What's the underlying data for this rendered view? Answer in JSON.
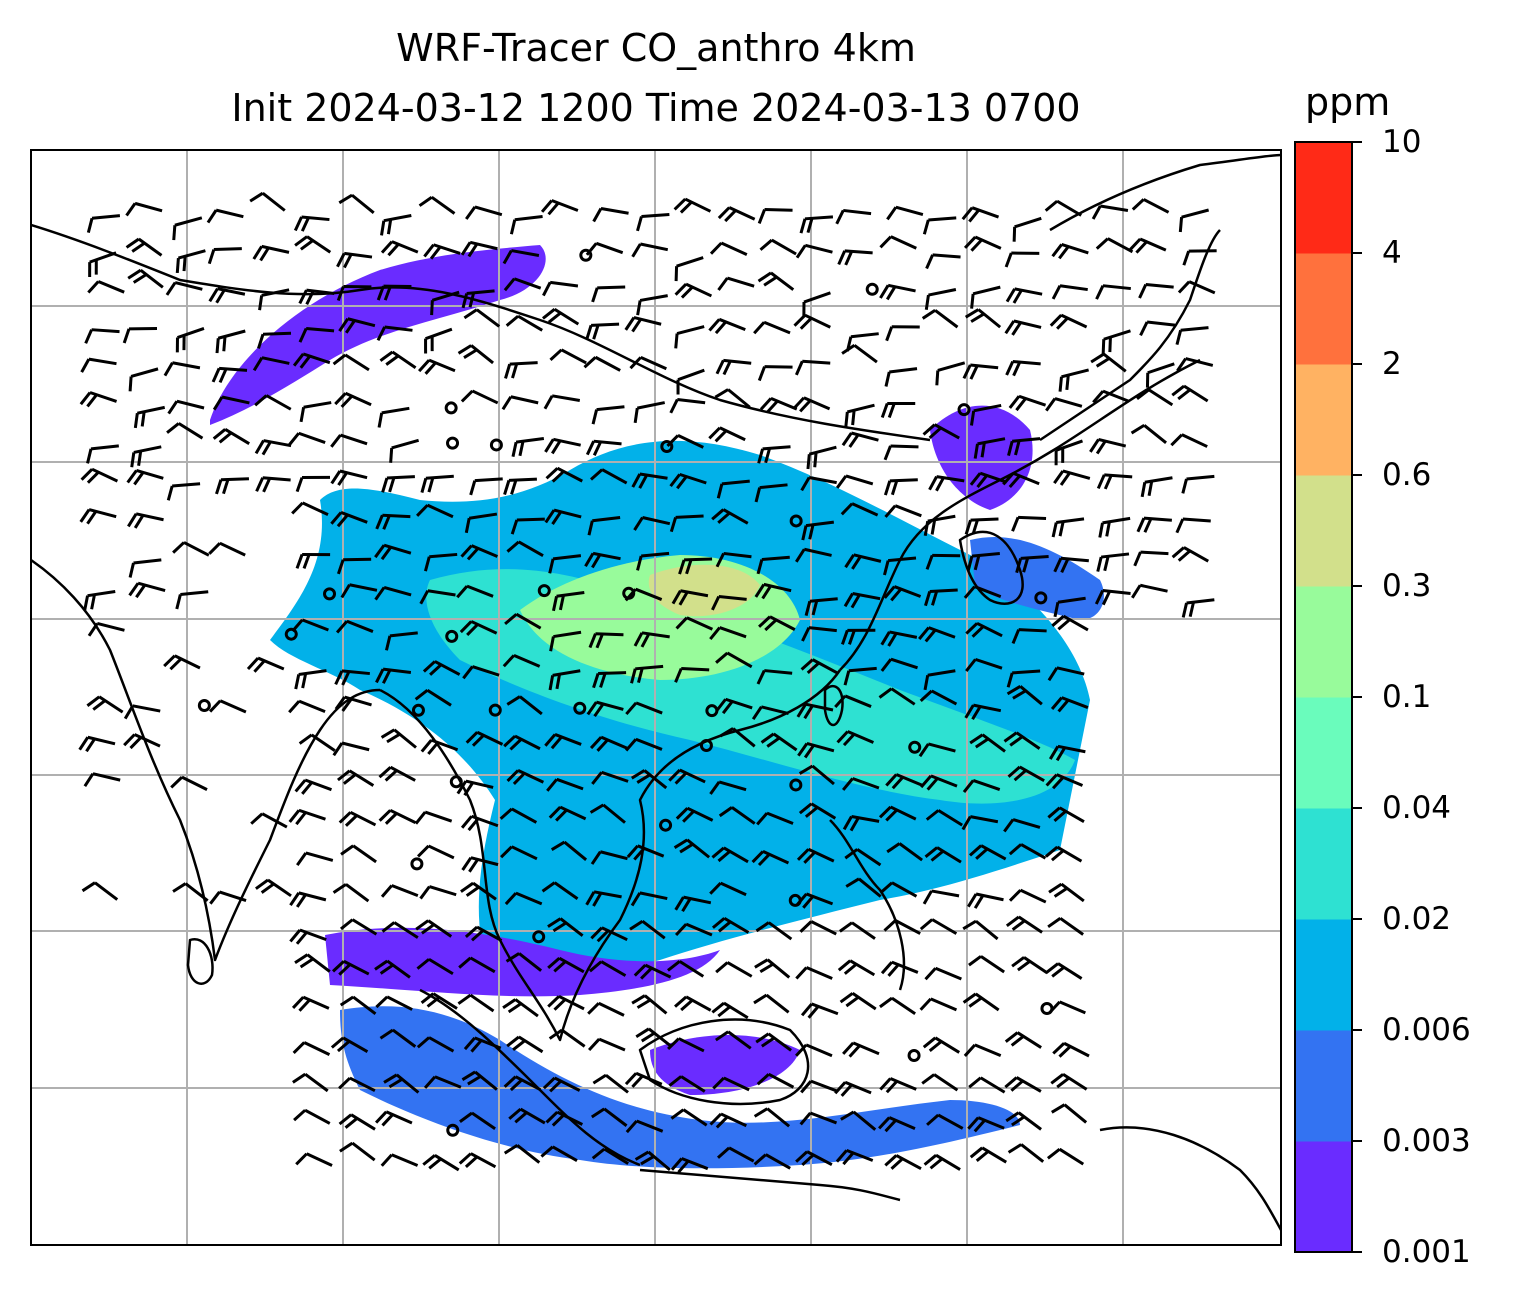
{
  "title": {
    "line1": "WRF-Tracer CO_anthro 4km",
    "line2": "Init 2024-03-12 1200 Time 2024-03-13 0700"
  },
  "colorbar": {
    "unit": "ppm",
    "levels": [
      "0.001",
      "0.003",
      "0.006",
      "0.02",
      "0.04",
      "0.1",
      "0.3",
      "0.6",
      "2",
      "4",
      "10"
    ],
    "colors": [
      "#6a2cff",
      "#3373f2",
      "#02b1e9",
      "#2ee1d2",
      "#6afcbc",
      "#98fb9b",
      "#d2e08b",
      "#ffb262",
      "#ff713d",
      "#ff2a17"
    ]
  },
  "legend_colors": {
    "coastline": "#000000",
    "gridline": "#b0b0b0",
    "wind_barb": "#000000"
  }
}
